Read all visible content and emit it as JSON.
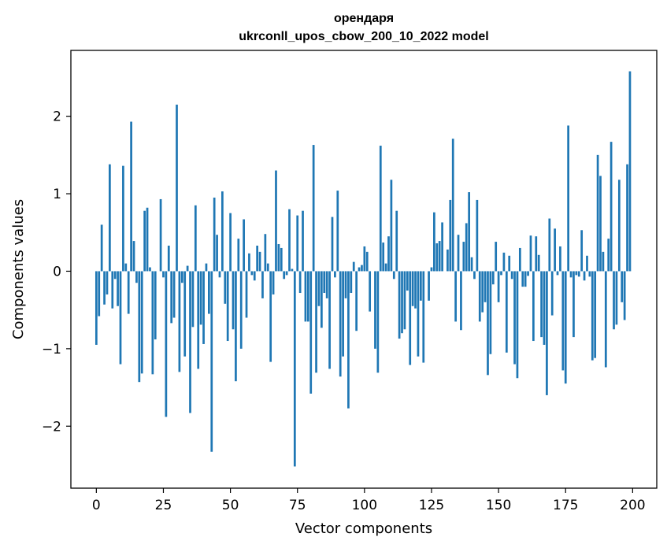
{
  "chart_data": {
    "type": "bar",
    "title": "орендаря",
    "subtitle": "ukrconll_upos_cbow_200_10_2022 model",
    "xlabel": "Vector components",
    "ylabel": "Components values",
    "xlim": [
      -9.5,
      209
    ],
    "ylim": [
      -2.8,
      2.85
    ],
    "xticks": [
      0,
      25,
      50,
      75,
      100,
      125,
      150,
      175,
      200
    ],
    "yticks": [
      -2,
      -1,
      0,
      1,
      2
    ],
    "bar_color": "#1f77b4",
    "x": [
      0,
      1,
      2,
      3,
      4,
      5,
      6,
      7,
      8,
      9,
      10,
      11,
      12,
      13,
      14,
      15,
      16,
      17,
      18,
      19,
      20,
      21,
      22,
      23,
      24,
      25,
      26,
      27,
      28,
      29,
      30,
      31,
      32,
      33,
      34,
      35,
      36,
      37,
      38,
      39,
      40,
      41,
      42,
      43,
      44,
      45,
      46,
      47,
      48,
      49,
      50,
      51,
      52,
      53,
      54,
      55,
      56,
      57,
      58,
      59,
      60,
      61,
      62,
      63,
      64,
      65,
      66,
      67,
      68,
      69,
      70,
      71,
      72,
      73,
      74,
      75,
      76,
      77,
      78,
      79,
      80,
      81,
      82,
      83,
      84,
      85,
      86,
      87,
      88,
      89,
      90,
      91,
      92,
      93,
      94,
      95,
      96,
      97,
      98,
      99,
      100,
      101,
      102,
      103,
      104,
      105,
      106,
      107,
      108,
      109,
      110,
      111,
      112,
      113,
      114,
      115,
      116,
      117,
      118,
      119,
      120,
      121,
      122,
      123,
      124,
      125,
      126,
      127,
      128,
      129,
      130,
      131,
      132,
      133,
      134,
      135,
      136,
      137,
      138,
      139,
      140,
      141,
      142,
      143,
      144,
      145,
      146,
      147,
      148,
      149,
      150,
      151,
      152,
      153,
      154,
      155,
      156,
      157,
      158,
      159,
      160,
      161,
      162,
      163,
      164,
      165,
      166,
      167,
      168,
      169,
      170,
      171,
      172,
      173,
      174,
      175,
      176,
      177,
      178,
      179,
      180,
      181,
      182,
      183,
      184,
      185,
      186,
      187,
      188,
      189,
      190,
      191,
      192,
      193,
      194,
      195,
      196,
      197,
      198,
      199
    ],
    "values": [
      -0.95,
      -0.58,
      0.6,
      -0.43,
      -0.3,
      1.38,
      -0.48,
      -0.1,
      -0.45,
      -1.2,
      1.36,
      0.1,
      -0.55,
      1.93,
      0.39,
      -0.15,
      -1.43,
      -1.32,
      0.78,
      0.82,
      0.05,
      -1.33,
      -0.88,
      0.0,
      0.93,
      -0.08,
      -1.88,
      0.33,
      -0.67,
      -0.6,
      2.15,
      -1.3,
      -0.15,
      -1.1,
      0.07,
      -1.83,
      -0.72,
      0.85,
      -1.26,
      -0.69,
      -0.94,
      0.1,
      -0.55,
      -2.33,
      0.95,
      0.47,
      -0.08,
      1.03,
      -0.42,
      -0.9,
      0.75,
      -0.75,
      -1.42,
      0.42,
      -1.0,
      0.67,
      -0.6,
      0.23,
      -0.05,
      -0.12,
      0.33,
      0.25,
      -0.35,
      0.48,
      0.1,
      -1.17,
      -0.3,
      1.3,
      0.35,
      0.3,
      -0.1,
      -0.05,
      0.8,
      0.03,
      -2.52,
      0.72,
      -0.28,
      0.78,
      -0.65,
      -0.65,
      -1.58,
      1.63,
      -1.31,
      -0.45,
      -0.73,
      -0.28,
      -0.35,
      -1.26,
      0.7,
      -0.08,
      1.04,
      -1.36,
      -1.1,
      -0.35,
      -1.77,
      -0.28,
      0.12,
      -0.77,
      0.05,
      0.08,
      0.32,
      0.25,
      -0.52,
      0.0,
      -1.0,
      -1.31,
      1.62,
      0.37,
      0.1,
      0.45,
      1.18,
      -0.1,
      0.78,
      -0.87,
      -0.8,
      -0.75,
      -0.25,
      -1.21,
      -0.45,
      -0.48,
      -1.1,
      -0.38,
      -1.18,
      0.0,
      -0.38,
      0.05,
      0.76,
      0.36,
      0.39,
      0.63,
      0.0,
      0.28,
      0.92,
      1.71,
      -0.65,
      0.47,
      -0.76,
      0.38,
      0.62,
      1.02,
      0.18,
      -0.1,
      0.92,
      -0.65,
      -0.53,
      -0.4,
      -1.34,
      -1.07,
      -0.17,
      0.38,
      -0.4,
      -0.05,
      0.24,
      -1.05,
      0.2,
      -0.1,
      -1.2,
      -1.38,
      0.3,
      -0.2,
      -0.2,
      -0.06,
      0.46,
      -0.9,
      0.45,
      0.21,
      -0.85,
      -0.95,
      -1.6,
      0.68,
      -0.57,
      0.55,
      -0.05,
      0.32,
      -1.28,
      -1.45,
      1.88,
      -0.08,
      -0.85,
      -0.05,
      -0.07,
      0.53,
      -0.12,
      0.2,
      -0.07,
      -1.15,
      -1.12,
      1.5,
      1.23,
      0.25,
      -1.24,
      0.42,
      1.67,
      -0.75,
      -0.69,
      1.18,
      -0.4,
      -0.63,
      1.38,
      2.58
    ]
  }
}
